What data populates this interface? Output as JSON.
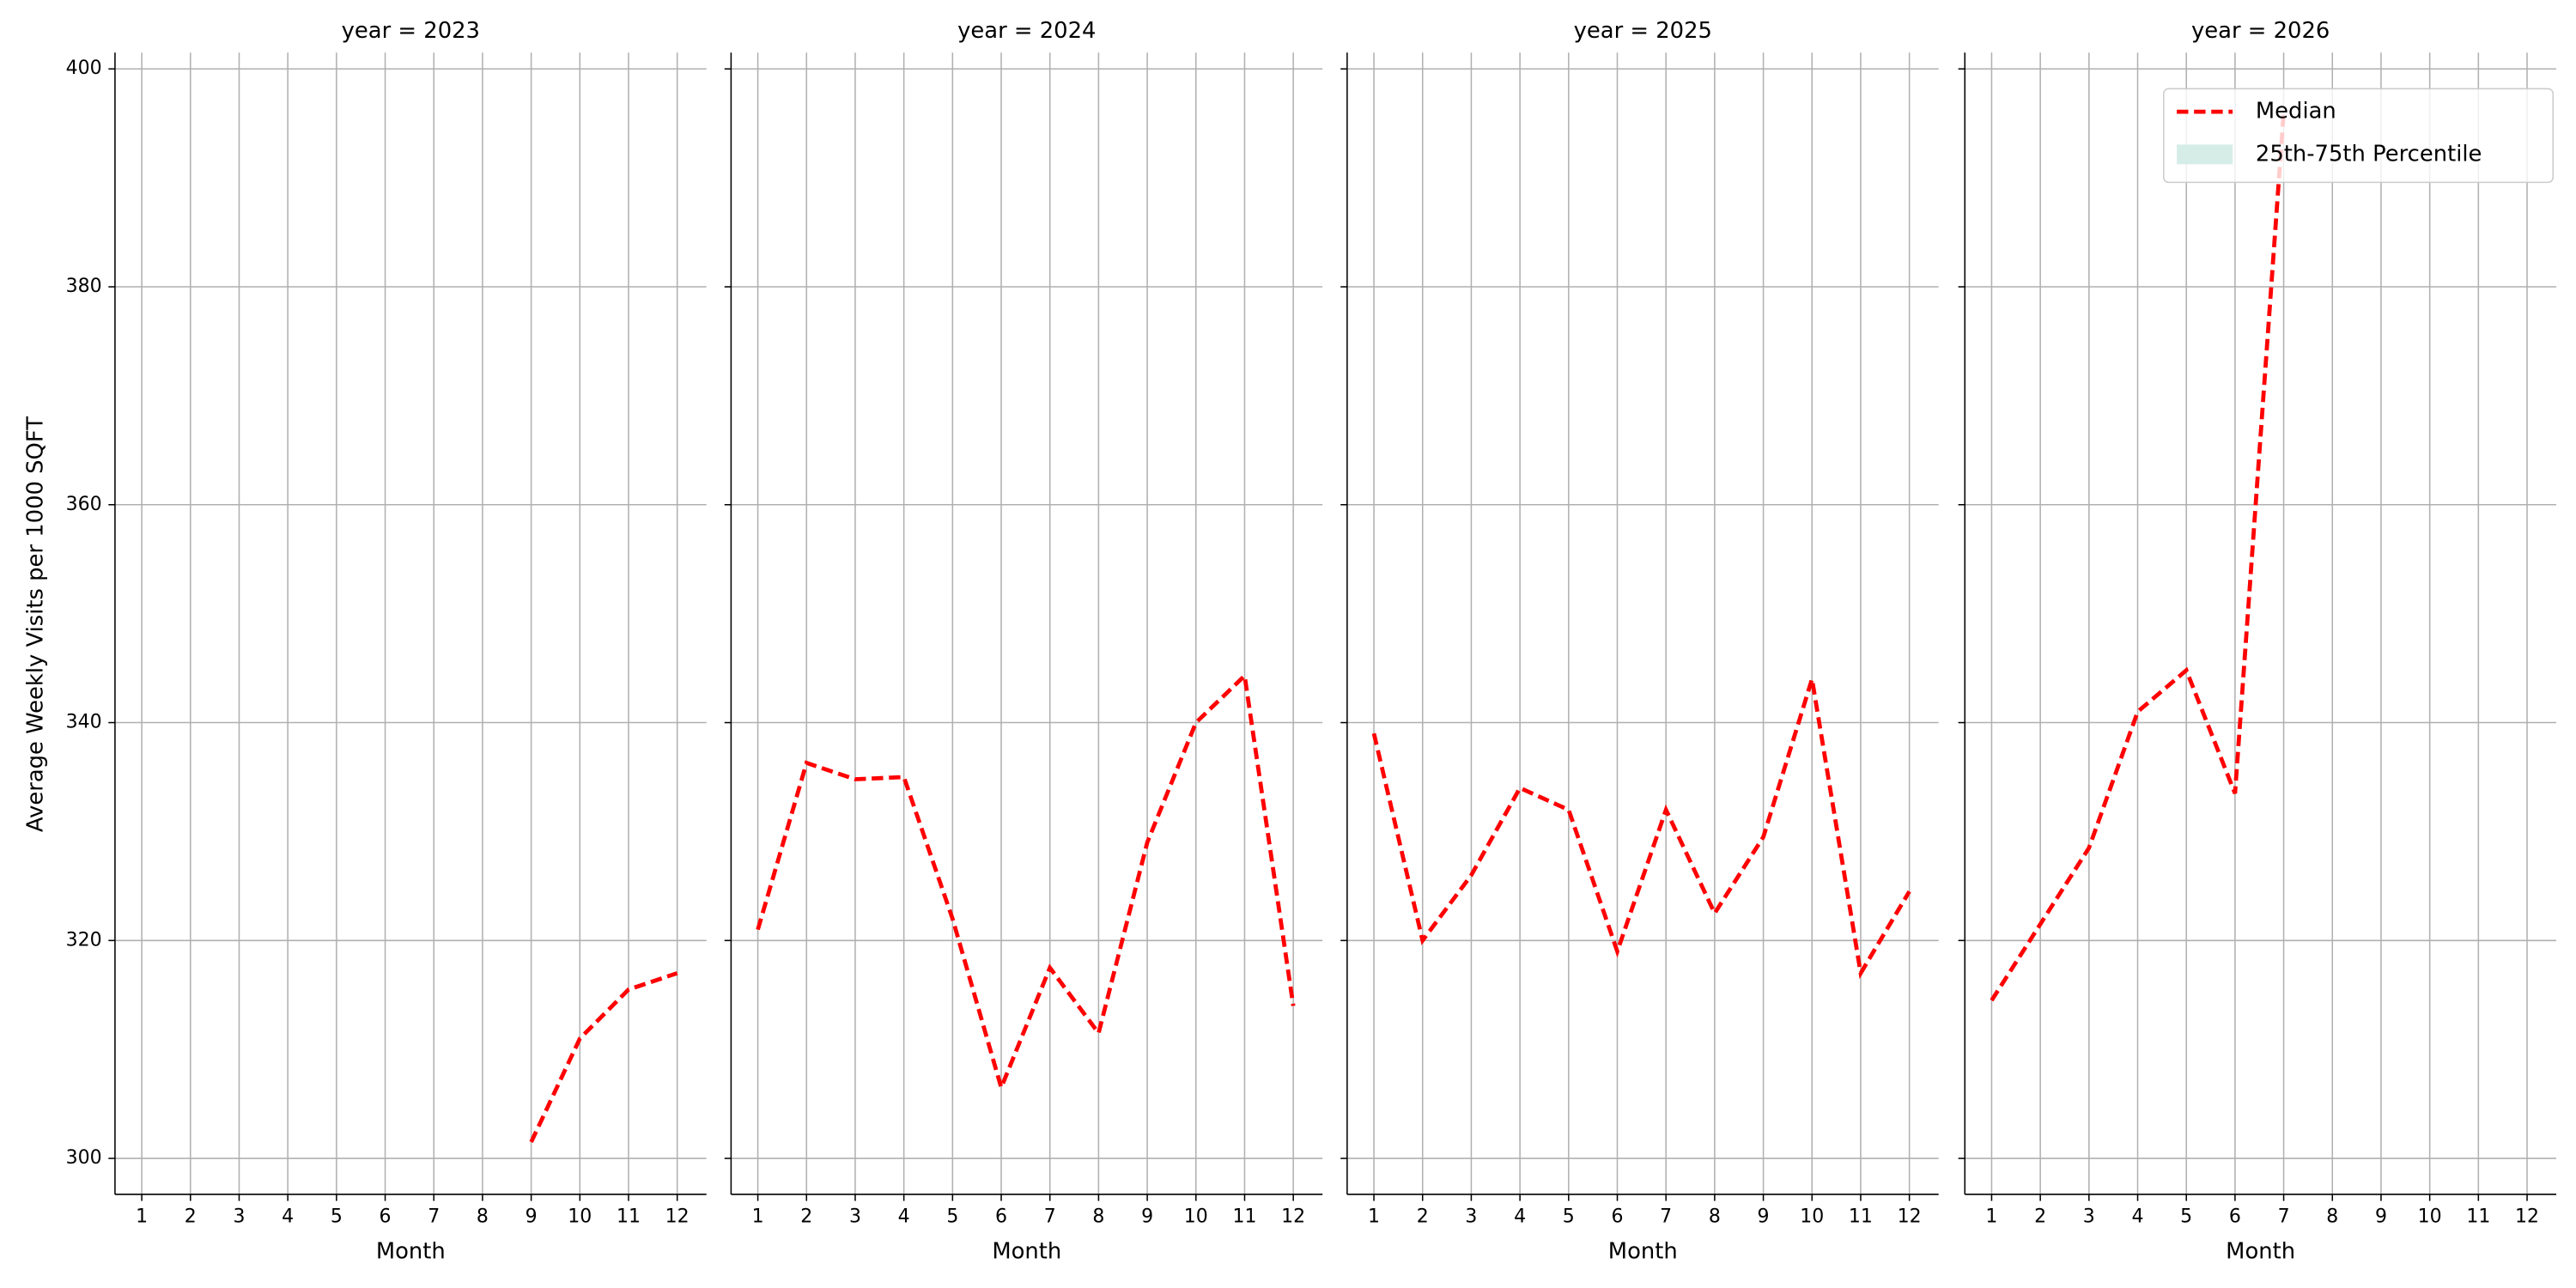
{
  "ylabel": "Average Weekly Visits per 1000 SQFT",
  "legend": {
    "loc": "upper right",
    "items": [
      {
        "label": "Median",
        "color": "#ff0000",
        "style": "dashed"
      },
      {
        "label": "25th-75th Percentile",
        "color": "#d5ede6",
        "style": "band"
      }
    ]
  },
  "chart_data": [
    {
      "type": "line",
      "title": "year = 2023",
      "xlabel": "Month",
      "x": [
        1,
        2,
        3,
        4,
        5,
        6,
        7,
        8,
        9,
        10,
        11,
        12
      ],
      "series": [
        {
          "name": "Median",
          "color": "#ff0000",
          "values": [
            null,
            null,
            null,
            null,
            null,
            null,
            null,
            null,
            301.5,
            311,
            315.5,
            317
          ]
        }
      ],
      "xlim": [
        0.45,
        12.6
      ],
      "xticks": [
        1,
        2,
        3,
        4,
        5,
        6,
        7,
        8,
        9,
        10,
        11,
        12
      ],
      "ylim": [
        296.7,
        401.5
      ],
      "yticks": [
        300,
        320,
        340,
        360,
        380,
        400
      ],
      "grid": true,
      "show_yticklabels": true
    },
    {
      "type": "line",
      "title": "year = 2024",
      "xlabel": "Month",
      "x": [
        1,
        2,
        3,
        4,
        5,
        6,
        7,
        8,
        9,
        10,
        11,
        12
      ],
      "series": [
        {
          "name": "Median",
          "color": "#ff0000",
          "values": [
            321,
            336.3,
            334.8,
            335,
            322,
            306.5,
            317.5,
            311.5,
            329,
            340,
            344.3,
            314
          ]
        }
      ],
      "xlim": [
        0.45,
        12.6
      ],
      "xticks": [
        1,
        2,
        3,
        4,
        5,
        6,
        7,
        8,
        9,
        10,
        11,
        12
      ],
      "ylim": [
        296.7,
        401.5
      ],
      "yticks": [
        300,
        320,
        340,
        360,
        380,
        400
      ],
      "grid": true,
      "show_yticklabels": false
    },
    {
      "type": "line",
      "title": "year = 2025",
      "xlabel": "Month",
      "x": [
        1,
        2,
        3,
        4,
        5,
        6,
        7,
        8,
        9,
        10,
        11,
        12
      ],
      "series": [
        {
          "name": "Median",
          "color": "#ff0000",
          "values": [
            339,
            320,
            326,
            334,
            332,
            319,
            332,
            322.5,
            329.5,
            344,
            317,
            324.5
          ]
        }
      ],
      "xlim": [
        0.45,
        12.6
      ],
      "xticks": [
        1,
        2,
        3,
        4,
        5,
        6,
        7,
        8,
        9,
        10,
        11,
        12
      ],
      "ylim": [
        296.7,
        401.5
      ],
      "yticks": [
        300,
        320,
        340,
        360,
        380,
        400
      ],
      "grid": true,
      "show_yticklabels": false
    },
    {
      "type": "line",
      "title": "year = 2026",
      "xlabel": "Month",
      "x": [
        1,
        2,
        3,
        4,
        5,
        6,
        7,
        8,
        9,
        10,
        11,
        12
      ],
      "series": [
        {
          "name": "Median",
          "color": "#ff0000",
          "values": [
            314.5,
            321.5,
            328.5,
            341,
            344.8,
            333.5,
            396,
            null,
            null,
            null,
            null,
            null
          ]
        }
      ],
      "xlim": [
        0.45,
        12.6
      ],
      "xticks": [
        1,
        2,
        3,
        4,
        5,
        6,
        7,
        8,
        9,
        10,
        11,
        12
      ],
      "ylim": [
        296.7,
        401.5
      ],
      "yticks": [
        300,
        320,
        340,
        360,
        380,
        400
      ],
      "grid": true,
      "show_yticklabels": false
    }
  ]
}
